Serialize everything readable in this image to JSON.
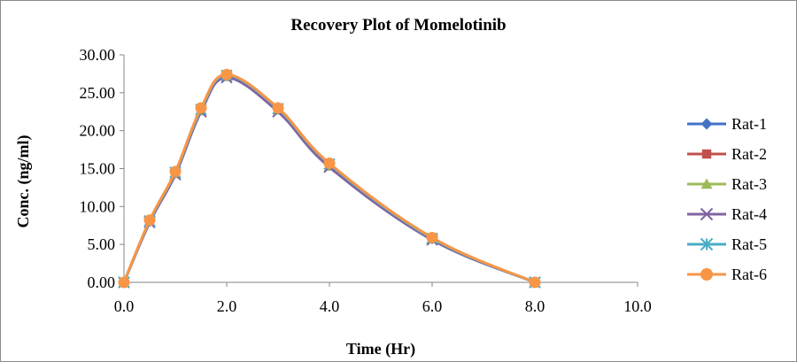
{
  "chart_data": {
    "type": "line",
    "title": "Recovery Plot of Momelotinib",
    "xlabel": "Time (Hr)",
    "ylabel": "Conc. (ng/ml)",
    "xlim": [
      0,
      10
    ],
    "ylim": [
      0,
      30
    ],
    "x_ticks": [
      "0.0",
      "2.0",
      "4.0",
      "6.0",
      "8.0",
      "10.0"
    ],
    "y_ticks": [
      "0.00",
      "5.00",
      "10.00",
      "15.00",
      "20.00",
      "25.00",
      "30.00"
    ],
    "grid": false,
    "legend_position": "right",
    "x": [
      0,
      0.5,
      1,
      1.5,
      2,
      3,
      4,
      6,
      8
    ],
    "series": [
      {
        "name": "Rat-1",
        "color": "#4472C4",
        "marker": "diamond",
        "values": [
          0,
          8.0,
          14.4,
          22.7,
          27.2,
          22.8,
          15.4,
          5.7,
          0
        ]
      },
      {
        "name": "Rat-2",
        "color": "#C0504D",
        "marker": "square",
        "values": [
          0,
          8.1,
          14.5,
          22.8,
          27.3,
          22.9,
          15.5,
          5.8,
          0
        ]
      },
      {
        "name": "Rat-3",
        "color": "#9BBB59",
        "marker": "triangle",
        "values": [
          0,
          8.0,
          14.3,
          22.6,
          27.1,
          22.7,
          15.3,
          5.7,
          0
        ]
      },
      {
        "name": "Rat-4",
        "color": "#8064A2",
        "marker": "x",
        "values": [
          0,
          7.9,
          14.2,
          22.5,
          27.0,
          22.5,
          15.2,
          5.6,
          0
        ]
      },
      {
        "name": "Rat-5",
        "color": "#4BACC6",
        "marker": "star",
        "values": [
          0,
          8.1,
          14.5,
          22.8,
          27.3,
          22.9,
          15.6,
          5.8,
          0
        ]
      },
      {
        "name": "Rat-6",
        "color": "#F79646",
        "marker": "circle",
        "values": [
          0,
          8.2,
          14.6,
          23.0,
          27.4,
          23.0,
          15.7,
          5.9,
          0
        ]
      }
    ]
  }
}
